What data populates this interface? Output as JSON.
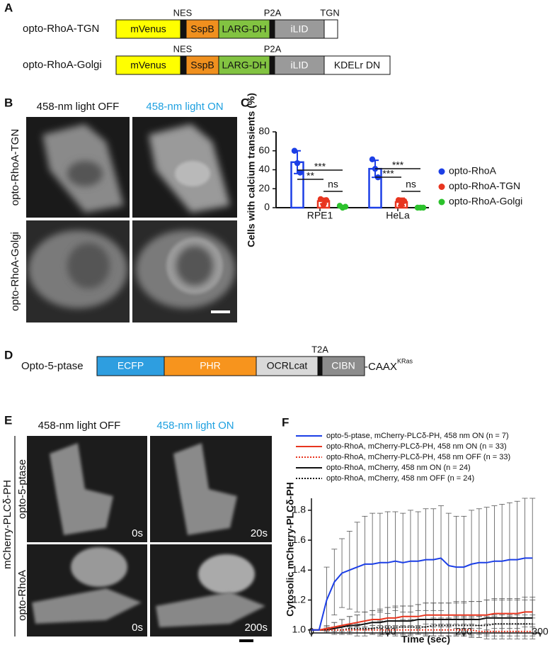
{
  "panel_a": {
    "label": "A",
    "constructs": [
      {
        "name": "opto-RhoA-TGN",
        "markers": [
          "NES",
          "P2A",
          "TGN"
        ],
        "segments": [
          {
            "text": "mVenus",
            "color": "#ffff00"
          },
          {
            "color": "#111111"
          },
          {
            "text": "SspB",
            "color": "#f0901e"
          },
          {
            "text": "LARG-DH",
            "color": "#82c341"
          },
          {
            "color": "#111111"
          },
          {
            "text": "iLID",
            "color": "#9a9a9a"
          },
          {
            "color": "#ffffff"
          }
        ]
      },
      {
        "name": "opto-RhoA-Golgi",
        "markers": [
          "NES",
          "P2A"
        ],
        "segments": [
          {
            "text": "mVenus",
            "color": "#ffff00"
          },
          {
            "color": "#111111"
          },
          {
            "text": "SspB",
            "color": "#f0901e"
          },
          {
            "text": "LARG-DH",
            "color": "#82c341"
          },
          {
            "color": "#111111"
          },
          {
            "text": "iLID",
            "color": "#9a9a9a"
          },
          {
            "text": "KDELr DN",
            "color": "#ffffff"
          }
        ]
      }
    ]
  },
  "panel_b": {
    "label": "B",
    "columns": [
      "458-nm light OFF",
      "458-nm light ON"
    ],
    "rows": [
      "opto-RhoA-TGN",
      "opto-RhoA-Golgi"
    ]
  },
  "chart_data": [
    {
      "label": "C",
      "type": "bar",
      "ylabel": "Cells with calcium transients (%)",
      "categories": [
        "RPE1",
        "HeLa"
      ],
      "ylim": [
        0,
        80
      ],
      "yticks": [
        0,
        20,
        40,
        60,
        80
      ],
      "series": [
        {
          "name": "opto-RhoA",
          "color": "#1c3fe6",
          "values": [
            48,
            41
          ],
          "errors": [
            12,
            9
          ],
          "points": [
            [
              60,
              47,
              37
            ],
            [
              51,
              41,
              32
            ]
          ]
        },
        {
          "name": "opto-RhoA-TGN",
          "color": "#e8351f",
          "values": [
            7,
            6
          ],
          "errors": [
            3,
            4
          ],
          "points": [
            [
              9,
              3,
              8
            ],
            [
              8,
              3,
              7
            ]
          ]
        },
        {
          "name": "opto-RhoA-Golgi",
          "color": "#2cc22c",
          "values": [
            1,
            0
          ],
          "errors": [
            1,
            0
          ],
          "points": [
            [
              2,
              0,
              1
            ],
            [
              0,
              0,
              0
            ]
          ]
        }
      ],
      "annotations": [
        "**",
        "***",
        "ns",
        "***",
        "***",
        "ns"
      ]
    },
    {
      "label": "F",
      "type": "line",
      "xlabel": "Time (sec)",
      "ylabel": "Cytosolic mCherry-PLCδ-PH",
      "x": [
        0,
        10,
        20,
        30,
        40,
        50,
        60,
        70,
        80,
        90,
        100,
        110,
        120,
        130,
        140,
        150,
        160,
        170,
        180,
        190,
        200,
        210,
        220,
        230,
        240,
        250,
        260,
        270,
        280,
        290
      ],
      "xlim": [
        0,
        300
      ],
      "xticks": [
        0,
        100,
        200,
        300
      ],
      "ylim": [
        0.98,
        1.88
      ],
      "yticks": [
        {
          "value": 1,
          "label": "1.0"
        },
        {
          "value": 1.2,
          "label": "1.2"
        },
        {
          "value": 1.4,
          "label": "1.4"
        },
        {
          "value": 1.6,
          "label": "1.6"
        },
        {
          "value": 1.8,
          "label": "1.8"
        }
      ],
      "series": [
        {
          "name": "opto-5-ptase, mCherry-PLCδ-PH, 458 nm ON (n = 7)",
          "color": "#1c3fe6",
          "dashed": false,
          "values": [
            1.0,
            1.0,
            1.2,
            1.32,
            1.38,
            1.4,
            1.42,
            1.44,
            1.44,
            1.45,
            1.45,
            1.46,
            1.45,
            1.46,
            1.46,
            1.47,
            1.47,
            1.48,
            1.43,
            1.42,
            1.42,
            1.44,
            1.45,
            1.45,
            1.46,
            1.46,
            1.47,
            1.47,
            1.48,
            1.48
          ],
          "errors": [
            0,
            0,
            0.22,
            0.22,
            0.23,
            0.26,
            0.3,
            0.32,
            0.34,
            0.33,
            0.34,
            0.33,
            0.33,
            0.34,
            0.33,
            0.34,
            0.34,
            0.35,
            0.35,
            0.34,
            0.34,
            0.36,
            0.36,
            0.37,
            0.37,
            0.38,
            0.38,
            0.39,
            0.4,
            0.4
          ]
        },
        {
          "name": "opto-RhoA, mCherry-PLCδ-PH, 458 nm ON (n = 33)",
          "color": "#e8351f",
          "dashed": false,
          "values": [
            1.0,
            1.0,
            1.01,
            1.02,
            1.03,
            1.04,
            1.05,
            1.06,
            1.07,
            1.07,
            1.08,
            1.08,
            1.09,
            1.09,
            1.09,
            1.1,
            1.1,
            1.1,
            1.1,
            1.1,
            1.1,
            1.1,
            1.1,
            1.1,
            1.11,
            1.11,
            1.11,
            1.11,
            1.12,
            1.12
          ],
          "errors": [
            0,
            0,
            0.02,
            0.03,
            0.04,
            0.05,
            0.05,
            0.06,
            0.06,
            0.06,
            0.07,
            0.07,
            0.07,
            0.07,
            0.08,
            0.08,
            0.08,
            0.08,
            0.08,
            0.09,
            0.09,
            0.09,
            0.09,
            0.1,
            0.1,
            0.1,
            0.1,
            0.1,
            0.1,
            0.1
          ]
        },
        {
          "name": "opto-RhoA, mCherry-PLCδ-PH, 458 nm OFF (n = 33)",
          "color": "#e8351f",
          "dashed": true,
          "values": [
            1.0,
            1.0,
            1.0,
            1.0,
            1.0,
            1.0,
            1.0,
            1.0,
            1.0,
            1.0,
            1.0,
            1.0,
            1.0,
            1.0,
            1.0,
            1.0,
            1.0,
            1.0,
            1.0,
            1.0,
            1.0,
            1.0,
            0.99,
            0.99,
            0.99,
            0.99,
            0.99,
            0.99,
            0.99,
            0.99
          ],
          "errors": [
            0,
            0,
            0.01,
            0.01,
            0.02,
            0.02,
            0.02,
            0.02,
            0.03,
            0.03,
            0.03,
            0.03,
            0.03,
            0.03,
            0.03,
            0.04,
            0.04,
            0.04,
            0.04,
            0.04,
            0.04,
            0.04,
            0.04,
            0.05,
            0.05,
            0.05,
            0.05,
            0.05,
            0.05,
            0.05
          ]
        },
        {
          "name": "opto-RhoA, mCherry, 458 nm ON (n = 24)",
          "color": "#111111",
          "dashed": false,
          "values": [
            1.0,
            1.0,
            1.0,
            1.01,
            1.02,
            1.03,
            1.03,
            1.04,
            1.05,
            1.05,
            1.06,
            1.06,
            1.06,
            1.06,
            1.07,
            1.07,
            1.07,
            1.07,
            1.07,
            1.07,
            1.07,
            1.07,
            1.07,
            1.08,
            1.08,
            1.08,
            1.08,
            1.08,
            1.08,
            1.08
          ],
          "errors": [
            0,
            0,
            0.02,
            0.04,
            0.05,
            0.06,
            0.07,
            0.08,
            0.08,
            0.09,
            0.09,
            0.1,
            0.1,
            0.1,
            0.1,
            0.11,
            0.11,
            0.11,
            0.11,
            0.11,
            0.11,
            0.12,
            0.12,
            0.12,
            0.12,
            0.12,
            0.12,
            0.12,
            0.12,
            0.12
          ]
        },
        {
          "name": "opto-RhoA, mCherry, 458 nm OFF (n = 24)",
          "color": "#111111",
          "dashed": true,
          "values": [
            1.0,
            1.0,
            1.0,
            1.0,
            1.0,
            1.01,
            1.01,
            1.01,
            1.01,
            1.02,
            1.02,
            1.02,
            1.02,
            1.02,
            1.02,
            1.02,
            1.03,
            1.03,
            1.03,
            1.03,
            1.03,
            1.03,
            1.03,
            1.03,
            1.04,
            1.04,
            1.04,
            1.04,
            1.04,
            1.04
          ],
          "errors": [
            0,
            0,
            0.01,
            0.02,
            0.02,
            0.03,
            0.03,
            0.03,
            0.04,
            0.04,
            0.04,
            0.04,
            0.05,
            0.05,
            0.05,
            0.05,
            0.05,
            0.05,
            0.05,
            0.06,
            0.06,
            0.06,
            0.06,
            0.06,
            0.06,
            0.06,
            0.06,
            0.06,
            0.06,
            0.06
          ]
        }
      ]
    }
  ],
  "panel_d": {
    "label": "D",
    "name": "Opto-5-ptase",
    "marker": "T2A",
    "segments": [
      {
        "text": "ECFP",
        "color": "#2e9ee0"
      },
      {
        "text": "PHR",
        "color": "#f7941d"
      },
      {
        "text": "OCRLcat",
        "color": "#d9d9d9"
      },
      {
        "color": "#111111"
      },
      {
        "text": "CIBN",
        "color": "#8c8c8c"
      }
    ],
    "tail": "-CAAX",
    "tail_superscript": "KRas"
  },
  "panel_e": {
    "label": "E",
    "columns": [
      "458-nm light OFF",
      "458-nm light ON"
    ],
    "rows": [
      "opto-5-ptase",
      "opto-RhoA"
    ],
    "group": "mCherry-PLCδ-PH",
    "timestamps": [
      [
        "0s",
        "20s"
      ],
      [
        "0s",
        "200s"
      ]
    ]
  }
}
